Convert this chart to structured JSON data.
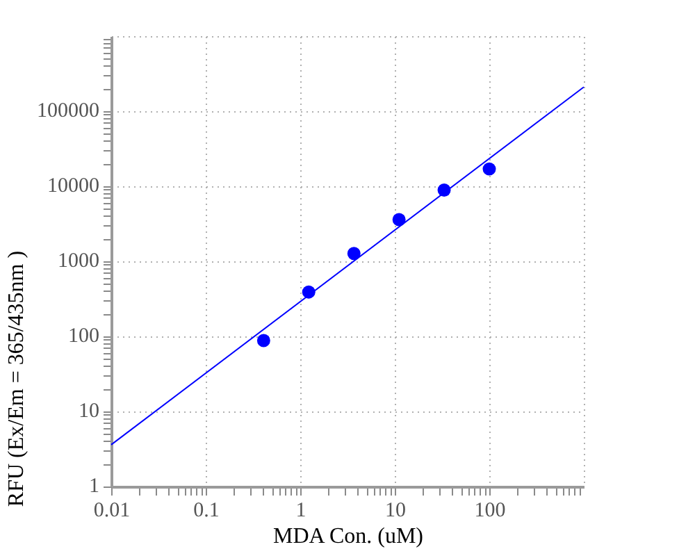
{
  "chart_data": {
    "type": "scatter",
    "xlabel": "MDA Con. (uM)",
    "ylabel": "RFU (Ex/Em = 365/435nm )",
    "log": "xy",
    "grid": true,
    "xlim": [
      0.01,
      1000
    ],
    "ylim": [
      1,
      1000000
    ],
    "xticks": [
      0.01,
      {
        "value": 0.02,
        "label": null
      },
      {
        "value": 0.03,
        "label": null
      },
      {
        "value": 0.04,
        "label": null
      },
      {
        "value": 0.05,
        "label": null
      },
      {
        "value": 0.06,
        "label": null
      },
      {
        "value": 0.07,
        "label": null
      },
      {
        "value": 0.08,
        "label": null
      },
      {
        "value": 0.09,
        "label": null
      },
      0.1,
      {
        "value": 0.2,
        "label": null
      },
      {
        "value": 0.3,
        "label": null
      },
      {
        "value": 0.4,
        "label": null
      },
      {
        "value": 0.5,
        "label": null
      },
      {
        "value": 0.6,
        "label": null
      },
      {
        "value": 0.7,
        "label": null
      },
      {
        "value": 0.8,
        "label": null
      },
      {
        "value": 0.9,
        "label": null
      },
      1,
      {
        "value": 2,
        "label": null
      },
      {
        "value": 3,
        "label": null
      },
      {
        "value": 4,
        "label": null
      },
      {
        "value": 5,
        "label": null
      },
      {
        "value": 6,
        "label": null
      },
      {
        "value": 7,
        "label": null
      },
      {
        "value": 8,
        "label": null
      },
      {
        "value": 9,
        "label": null
      },
      10,
      {
        "value": 20,
        "label": null
      },
      {
        "value": 30,
        "label": null
      },
      {
        "value": 40,
        "label": null
      },
      {
        "value": 50,
        "label": null
      },
      {
        "value": 60,
        "label": null
      },
      {
        "value": 70,
        "label": null
      },
      {
        "value": 80,
        "label": null
      },
      {
        "value": 90,
        "label": null
      },
      100,
      {
        "value": 200,
        "label": null
      },
      {
        "value": 300,
        "label": null
      },
      {
        "value": 400,
        "label": null
      },
      {
        "value": 500,
        "label": null
      },
      {
        "value": 600,
        "label": null
      },
      {
        "value": 700,
        "label": null
      },
      {
        "value": 800,
        "label": null
      },
      {
        "value": 900,
        "label": null
      }
    ],
    "yticks": [
      1,
      {
        "value": 2,
        "label": null
      },
      {
        "value": 3,
        "label": null
      },
      {
        "value": 4,
        "label": null
      },
      {
        "value": 5,
        "label": null
      },
      {
        "value": 6,
        "label": null
      },
      {
        "value": 7,
        "label": null
      },
      {
        "value": 8,
        "label": null
      },
      {
        "value": 9,
        "label": null
      },
      10,
      {
        "value": 20,
        "label": null
      },
      {
        "value": 30,
        "label": null
      },
      {
        "value": 40,
        "label": null
      },
      {
        "value": 50,
        "label": null
      },
      {
        "value": 60,
        "label": null
      },
      {
        "value": 70,
        "label": null
      },
      {
        "value": 80,
        "label": null
      },
      {
        "value": 90,
        "label": null
      },
      100,
      {
        "value": 200,
        "label": null
      },
      {
        "value": 300,
        "label": null
      },
      {
        "value": 400,
        "label": null
      },
      {
        "value": 500,
        "label": null
      },
      {
        "value": 600,
        "label": null
      },
      {
        "value": 700,
        "label": null
      },
      {
        "value": 800,
        "label": null
      },
      {
        "value": 900,
        "label": null
      },
      1000,
      {
        "value": 2000,
        "label": null
      },
      {
        "value": 3000,
        "label": null
      },
      {
        "value": 4000,
        "label": null
      },
      {
        "value": 5000,
        "label": null
      },
      {
        "value": 6000,
        "label": null
      },
      {
        "value": 7000,
        "label": null
      },
      {
        "value": 8000,
        "label": null
      },
      {
        "value": 9000,
        "label": null
      },
      10000,
      {
        "value": 20000,
        "label": null
      },
      {
        "value": 30000,
        "label": null
      },
      {
        "value": 40000,
        "label": null
      },
      {
        "value": 50000,
        "label": null
      },
      {
        "value": 60000,
        "label": null
      },
      {
        "value": 70000,
        "label": null
      },
      {
        "value": 80000,
        "label": null
      },
      {
        "value": 90000,
        "label": null
      },
      100000,
      {
        "value": 200000,
        "label": null
      },
      {
        "value": 300000,
        "label": null
      },
      {
        "value": 400000,
        "label": null
      },
      {
        "value": 500000,
        "label": null
      },
      {
        "value": 600000,
        "label": null
      },
      {
        "value": 700000,
        "label": null
      },
      {
        "value": 800000,
        "label": null
      },
      {
        "value": 900000,
        "label": null
      }
    ],
    "x": [
      0.41,
      1.23,
      3.7,
      11.1,
      33.3,
      100
    ],
    "series": [
      {
        "color": "#0000ff",
        "marker": "circle",
        "values": [
          88,
          390,
          1270,
          3600,
          8900,
          17000
        ]
      },
      {
        "type": "line",
        "color": "#0000ff",
        "x": [
          0.01,
          1000
        ],
        "values": [
          3.6,
          210000
        ]
      }
    ]
  }
}
